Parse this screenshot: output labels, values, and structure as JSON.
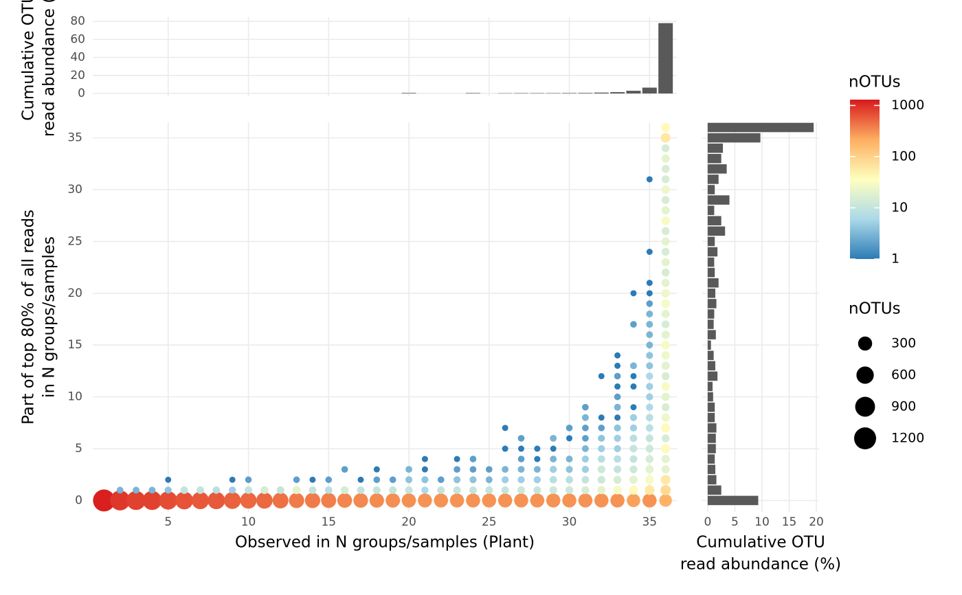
{
  "chart_data": [
    {
      "type": "scatter",
      "xlabel": "Observed in N groups/samples (Plant)",
      "ylabel": [
        "Part of top 80% of all reads",
        "in N groups/samples"
      ],
      "xlim": [
        0.3,
        36.7
      ],
      "ylim": [
        -1.1,
        36.5
      ],
      "xticks": [
        5,
        10,
        15,
        20,
        25,
        30,
        35
      ],
      "yticks": [
        0,
        5,
        10,
        15,
        20,
        25,
        30,
        35
      ],
      "grid": true,
      "x": [
        1,
        2,
        2,
        3,
        3,
        4,
        4,
        5,
        5,
        5,
        6,
        6,
        7,
        7,
        8,
        8,
        9,
        9,
        9,
        10,
        10,
        10,
        11,
        11,
        12,
        12,
        13,
        13,
        13,
        14,
        14,
        14,
        15,
        15,
        15,
        16,
        16,
        16,
        17,
        17,
        17,
        18,
        18,
        18,
        18,
        19,
        19,
        19,
        20,
        20,
        20,
        20,
        21,
        21,
        21,
        21,
        21,
        22,
        22,
        22,
        23,
        23,
        23,
        23,
        23,
        24,
        24,
        24,
        24,
        24,
        25,
        25,
        25,
        25,
        26,
        26,
        26,
        26,
        26,
        26,
        27,
        27,
        27,
        27,
        27,
        27,
        27,
        28,
        28,
        28,
        28,
        28,
        28,
        29,
        29,
        29,
        29,
        29,
        29,
        29,
        30,
        30,
        30,
        30,
        30,
        30,
        30,
        31,
        31,
        31,
        31,
        31,
        31,
        31,
        31,
        31,
        31,
        32,
        32,
        32,
        32,
        32,
        32,
        32,
        32,
        32,
        32,
        33,
        33,
        33,
        33,
        33,
        33,
        33,
        33,
        33,
        33,
        33,
        33,
        33,
        33,
        33,
        34,
        34,
        34,
        34,
        34,
        34,
        34,
        34,
        34,
        34,
        34,
        34,
        34,
        34,
        34,
        35,
        35,
        35,
        35,
        35,
        35,
        35,
        35,
        35,
        35,
        35,
        35,
        35,
        35,
        35,
        35,
        35,
        35,
        35,
        35,
        35,
        35,
        35,
        35,
        36,
        36,
        36,
        36,
        36,
        36,
        36,
        36,
        36,
        36,
        36,
        36,
        36,
        36,
        36,
        36,
        36,
        36,
        36,
        36,
        36,
        36,
        36,
        36,
        36,
        36,
        36,
        36,
        36,
        36,
        36,
        36,
        36,
        36,
        36,
        36,
        36
      ],
      "y": [
        0,
        0,
        1,
        0,
        1,
        0,
        1,
        0,
        1,
        2,
        0,
        1,
        0,
        1,
        0,
        1,
        0,
        1,
        2,
        0,
        1,
        2,
        0,
        1,
        0,
        1,
        0,
        1,
        2,
        0,
        1,
        2,
        0,
        1,
        2,
        0,
        1,
        3,
        0,
        1,
        2,
        0,
        1,
        2,
        3,
        0,
        1,
        2,
        0,
        1,
        2,
        3,
        0,
        1,
        2,
        3,
        4,
        0,
        1,
        2,
        0,
        1,
        2,
        3,
        4,
        0,
        1,
        2,
        3,
        4,
        0,
        1,
        2,
        3,
        0,
        1,
        2,
        3,
        5,
        7,
        0,
        1,
        2,
        3,
        4,
        5,
        6,
        0,
        1,
        2,
        3,
        4,
        5,
        0,
        1,
        2,
        3,
        4,
        5,
        6,
        0,
        1,
        2,
        3,
        4,
        6,
        7,
        0,
        1,
        2,
        3,
        4,
        5,
        6,
        7,
        8,
        9,
        0,
        1,
        2,
        3,
        4,
        5,
        6,
        7,
        8,
        12,
        0,
        1,
        2,
        3,
        4,
        5,
        6,
        7,
        8,
        9,
        10,
        11,
        12,
        13,
        14,
        0,
        1,
        2,
        3,
        4,
        5,
        6,
        7,
        8,
        9,
        11,
        12,
        13,
        17,
        20,
        0,
        1,
        2,
        3,
        4,
        5,
        6,
        7,
        8,
        9,
        10,
        11,
        12,
        13,
        14,
        15,
        16,
        17,
        18,
        19,
        20,
        21,
        24,
        31,
        0,
        1,
        2,
        3,
        4,
        5,
        6,
        7,
        8,
        9,
        10,
        11,
        12,
        13,
        14,
        15,
        16,
        17,
        18,
        19,
        20,
        21,
        22,
        23,
        24,
        25,
        26,
        27,
        28,
        29,
        30,
        31,
        32,
        33,
        34,
        35,
        36
      ],
      "sizes": [
        1200,
        900,
        3,
        800,
        3,
        800,
        3,
        700,
        4,
        1,
        650,
        10,
        600,
        10,
        600,
        8,
        550,
        5,
        1,
        500,
        10,
        2,
        500,
        15,
        450,
        10,
        400,
        20,
        2,
        400,
        10,
        1,
        380,
        8,
        2,
        350,
        15,
        2,
        340,
        10,
        1,
        330,
        10,
        2,
        1,
        320,
        10,
        2,
        310,
        10,
        4,
        3,
        300,
        6,
        4,
        1,
        1,
        300,
        10,
        2,
        300,
        10,
        4,
        2,
        1,
        300,
        10,
        4,
        2,
        2,
        300,
        10,
        3,
        2,
        300,
        10,
        5,
        3,
        1,
        1,
        300,
        12,
        5,
        3,
        2,
        1,
        2,
        300,
        10,
        5,
        3,
        1,
        1,
        300,
        12,
        8,
        5,
        3,
        1,
        3,
        300,
        12,
        8,
        4,
        3,
        1,
        2,
        300,
        15,
        10,
        5,
        5,
        3,
        2,
        2,
        3,
        2,
        300,
        20,
        12,
        12,
        8,
        5,
        4,
        2,
        1,
        1,
        300,
        30,
        15,
        10,
        8,
        5,
        5,
        4,
        1,
        3,
        2,
        1,
        2,
        1,
        1,
        250,
        40,
        20,
        12,
        10,
        10,
        8,
        5,
        5,
        1,
        1,
        1,
        3,
        2,
        1,
        300,
        60,
        30,
        20,
        15,
        12,
        10,
        8,
        8,
        6,
        5,
        5,
        6,
        4,
        4,
        3,
        3,
        3,
        3,
        2,
        1,
        1,
        1,
        1,
        200,
        80,
        60,
        20,
        20,
        40,
        15,
        40,
        25,
        15,
        20,
        30,
        15,
        20,
        25,
        30,
        20,
        15,
        20,
        30,
        25,
        20,
        15,
        20,
        15,
        20,
        15,
        30,
        20,
        15,
        25,
        15,
        15,
        20,
        15,
        60,
        40
      ],
      "size_lim": [
        1,
        1200
      ],
      "legend": {
        "color_title": "nOTUs",
        "color_ticks": [
          1000,
          100,
          10,
          1
        ],
        "color_lim": [
          1,
          1300
        ],
        "colors": [
          "#2c7bb6",
          "#abd9e9",
          "#ffffbf",
          "#fdae61",
          "#d7191c"
        ],
        "size_title": "nOTUs",
        "size_ticks": [
          300,
          600,
          900,
          1200
        ]
      }
    },
    {
      "type": "bar",
      "orientation": "vertical",
      "ylabel": [
        "Cumulative OTU",
        "read abundance (%)"
      ],
      "ylim": [
        -3,
        84.6
      ],
      "yticks": [
        0,
        20,
        40,
        60,
        80
      ],
      "color": "#595959",
      "x": [
        1,
        2,
        3,
        4,
        5,
        6,
        7,
        8,
        9,
        10,
        11,
        12,
        13,
        14,
        15,
        16,
        17,
        18,
        19,
        20,
        21,
        22,
        23,
        24,
        25,
        26,
        27,
        28,
        29,
        30,
        31,
        32,
        33,
        34,
        35,
        36
      ],
      "values": [
        0,
        0,
        0,
        0,
        0,
        0,
        0,
        0,
        0,
        0,
        0,
        0,
        0,
        0,
        0,
        0,
        0,
        0,
        0,
        0.6,
        0,
        0,
        0,
        0.5,
        0,
        0.3,
        0.4,
        0.4,
        0.4,
        0.5,
        0.6,
        1.0,
        1.5,
        3.0,
        6.5,
        78
      ]
    },
    {
      "type": "bar",
      "orientation": "horizontal",
      "xlabel": [
        "Cumulative OTU",
        "read abundance (%)"
      ],
      "xlim": [
        -1,
        20.5
      ],
      "xticks": [
        0,
        5,
        10,
        15,
        20
      ],
      "color": "#595959",
      "y": [
        0,
        1,
        2,
        3,
        4,
        5,
        6,
        7,
        8,
        9,
        10,
        11,
        12,
        13,
        14,
        15,
        16,
        17,
        18,
        19,
        20,
        21,
        22,
        23,
        24,
        25,
        26,
        27,
        28,
        29,
        30,
        31,
        32,
        33,
        34,
        35,
        36
      ],
      "values": [
        9.3,
        2.5,
        1.6,
        1.4,
        1.3,
        1.5,
        1.5,
        1.6,
        1.3,
        1.3,
        1.0,
        0.9,
        1.8,
        1.4,
        1.1,
        0.6,
        1.5,
        1.1,
        1.2,
        1.6,
        1.4,
        2.0,
        1.3,
        1.2,
        1.8,
        1.3,
        3.2,
        2.5,
        1.2,
        4.0,
        1.3,
        2.0,
        3.5,
        2.5,
        2.8,
        9.7,
        19.5
      ]
    }
  ]
}
